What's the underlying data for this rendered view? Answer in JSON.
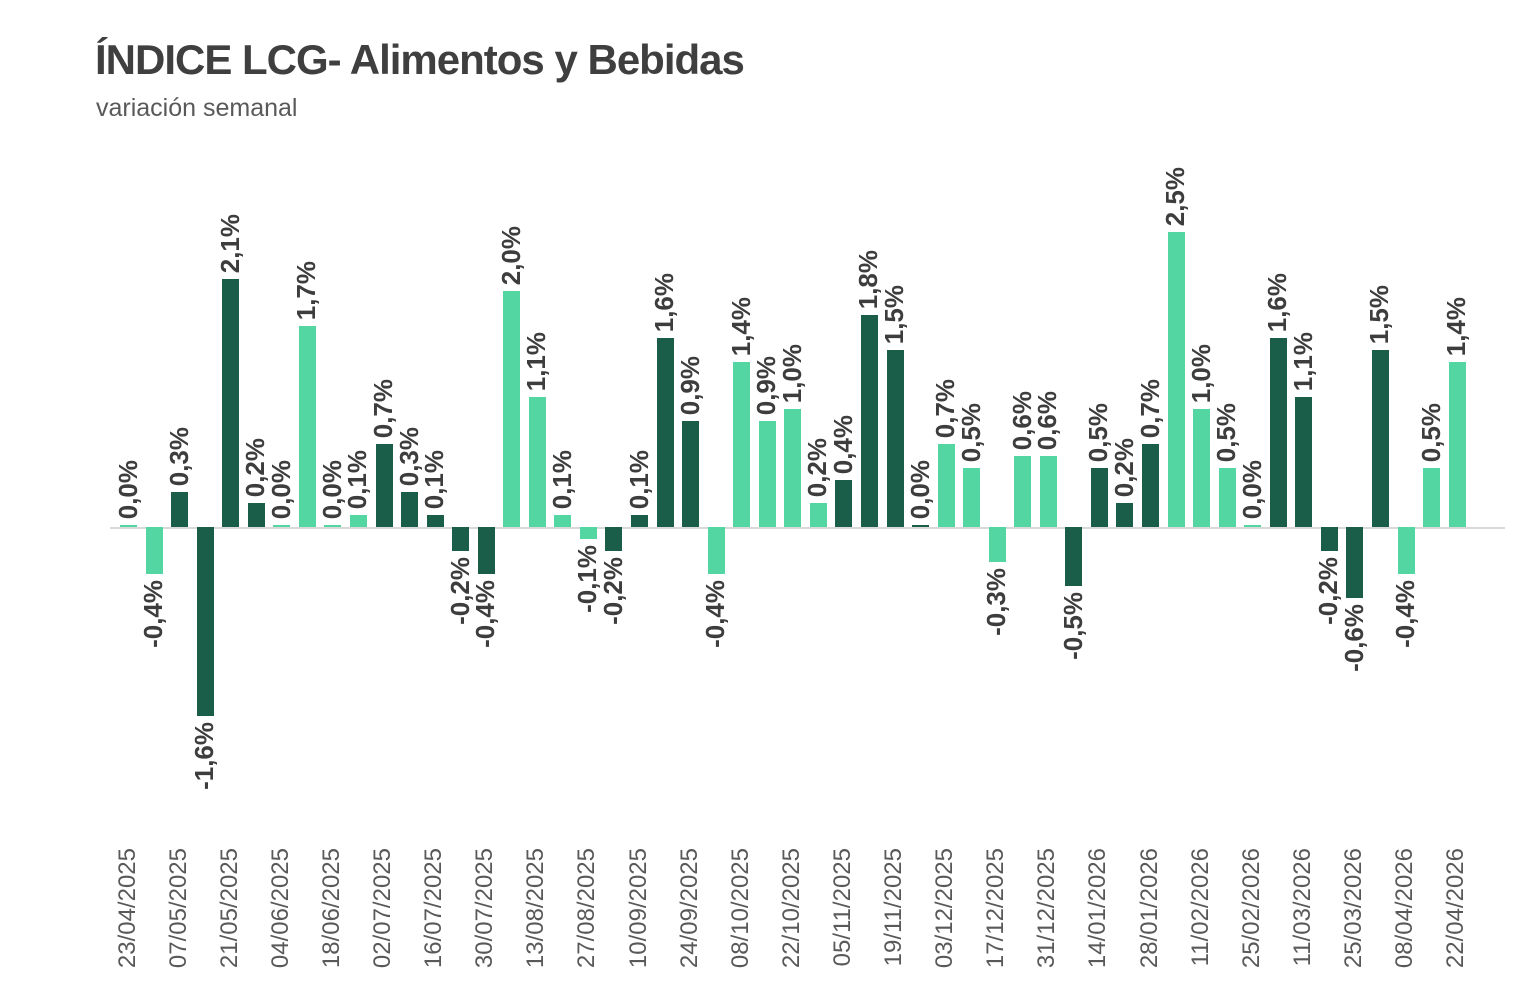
{
  "header": {
    "title": "ÍNDICE LCG- Alimentos y Bebidas",
    "subtitle": "variación semanal"
  },
  "chart_data": {
    "type": "bar",
    "title": "ÍNDICE LCG- Alimentos y Bebidas",
    "subtitle": "variación semanal",
    "unit": "%",
    "decimal_separator": ",",
    "ylim": [
      -1.8,
      2.7
    ],
    "grid": false,
    "legend": "none",
    "value_labels_rotated_90": true,
    "x_labels_rotated_90": true,
    "colors": {
      "dark": "#1a5e49",
      "light": "#54d6a2",
      "axis_line": "#d9d9d9",
      "value_label_text": "#3d3d3d",
      "tick_label_text": "#595959"
    },
    "x_tick_labels": [
      "23/04/2025",
      "07/05/2025",
      "21/05/2025",
      "04/06/2025",
      "18/06/2025",
      "02/07/2025",
      "16/07/2025",
      "30/07/2025",
      "13/08/2025",
      "27/08/2025",
      "10/09/2025",
      "24/09/2025",
      "08/10/2025",
      "22/10/2025",
      "05/11/2025",
      "19/11/2025",
      "03/12/2025",
      "17/12/2025",
      "31/12/2025",
      "14/01/2026",
      "28/01/2026",
      "11/02/2026",
      "25/02/2026",
      "11/03/2026",
      "25/03/2026",
      "08/04/2026",
      "22/04/2026"
    ],
    "x_tick_every_n_bars": 2,
    "bars": [
      {
        "label": "0,0%",
        "value": 0.0,
        "color": "light"
      },
      {
        "label": "-0,4%",
        "value": -0.4,
        "color": "light"
      },
      {
        "label": "0,3%",
        "value": 0.3,
        "color": "dark"
      },
      {
        "label": "-1,6%",
        "value": -1.6,
        "color": "dark"
      },
      {
        "label": "2,1%",
        "value": 2.1,
        "color": "dark"
      },
      {
        "label": "0,2%",
        "value": 0.2,
        "color": "dark"
      },
      {
        "label": "0,0%",
        "value": 0.0,
        "color": "light"
      },
      {
        "label": "1,7%",
        "value": 1.7,
        "color": "light"
      },
      {
        "label": "0,0%",
        "value": 0.0,
        "color": "light"
      },
      {
        "label": "0,1%",
        "value": 0.1,
        "color": "light"
      },
      {
        "label": "0,7%",
        "value": 0.7,
        "color": "dark"
      },
      {
        "label": "0,3%",
        "value": 0.3,
        "color": "dark"
      },
      {
        "label": "0,1%",
        "value": 0.1,
        "color": "dark"
      },
      {
        "label": "-0,2%",
        "value": -0.2,
        "color": "dark"
      },
      {
        "label": "-0,4%",
        "value": -0.4,
        "color": "dark"
      },
      {
        "label": "2,0%",
        "value": 2.0,
        "color": "light"
      },
      {
        "label": "1,1%",
        "value": 1.1,
        "color": "light"
      },
      {
        "label": "0,1%",
        "value": 0.1,
        "color": "light"
      },
      {
        "label": "-0,1%",
        "value": -0.1,
        "color": "light"
      },
      {
        "label": "-0,2%",
        "value": -0.2,
        "color": "dark"
      },
      {
        "label": "0,1%",
        "value": 0.1,
        "color": "dark"
      },
      {
        "label": "1,6%",
        "value": 1.6,
        "color": "dark"
      },
      {
        "label": "0,9%",
        "value": 0.9,
        "color": "dark"
      },
      {
        "label": "-0,4%",
        "value": -0.4,
        "color": "light"
      },
      {
        "label": "1,4%",
        "value": 1.4,
        "color": "light"
      },
      {
        "label": "0,9%",
        "value": 0.9,
        "color": "light"
      },
      {
        "label": "1,0%",
        "value": 1.0,
        "color": "light"
      },
      {
        "label": "0,2%",
        "value": 0.2,
        "color": "light"
      },
      {
        "label": "0,4%",
        "value": 0.4,
        "color": "dark"
      },
      {
        "label": "1,8%",
        "value": 1.8,
        "color": "dark"
      },
      {
        "label": "1,5%",
        "value": 1.5,
        "color": "dark"
      },
      {
        "label": "0,0%",
        "value": 0.0,
        "color": "dark"
      },
      {
        "label": "0,7%",
        "value": 0.7,
        "color": "light"
      },
      {
        "label": "0,5%",
        "value": 0.5,
        "color": "light"
      },
      {
        "label": "-0,3%",
        "value": -0.3,
        "color": "light"
      },
      {
        "label": "0,6%",
        "value": 0.6,
        "color": "light"
      },
      {
        "label": "0,6%",
        "value": 0.6,
        "color": "light"
      },
      {
        "label": "-0,5%",
        "value": -0.5,
        "color": "dark"
      },
      {
        "label": "0,5%",
        "value": 0.5,
        "color": "dark"
      },
      {
        "label": "0,2%",
        "value": 0.2,
        "color": "dark"
      },
      {
        "label": "0,7%",
        "value": 0.7,
        "color": "dark"
      },
      {
        "label": "2,5%",
        "value": 2.5,
        "color": "light"
      },
      {
        "label": "1,0%",
        "value": 1.0,
        "color": "light"
      },
      {
        "label": "0,5%",
        "value": 0.5,
        "color": "light"
      },
      {
        "label": "0,0%",
        "value": 0.0,
        "color": "light"
      },
      {
        "label": "1,6%",
        "value": 1.6,
        "color": "dark"
      },
      {
        "label": "1,1%",
        "value": 1.1,
        "color": "dark"
      },
      {
        "label": "-0,2%",
        "value": -0.2,
        "color": "dark"
      },
      {
        "label": "-0,6%",
        "value": -0.6,
        "color": "dark"
      },
      {
        "label": "1,5%",
        "value": 1.5,
        "color": "dark"
      },
      {
        "label": "-0,4%",
        "value": -0.4,
        "color": "light"
      },
      {
        "label": "0,5%",
        "value": 0.5,
        "color": "light"
      },
      {
        "label": "1,4%",
        "value": 1.4,
        "color": "light"
      }
    ]
  }
}
